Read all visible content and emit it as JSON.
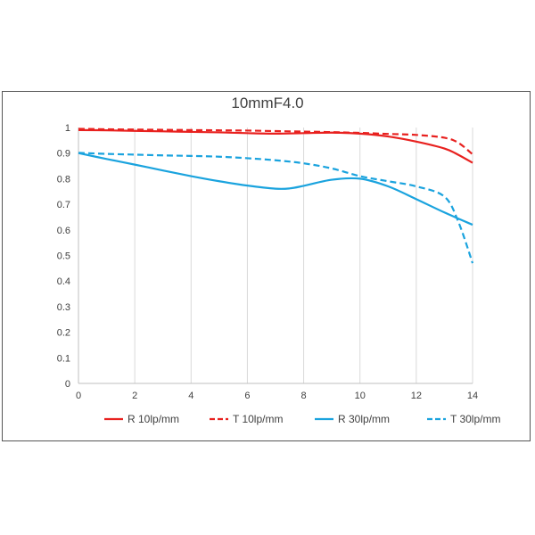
{
  "chart_data": {
    "type": "line",
    "title": "10mmF4.0",
    "xlabel": "",
    "ylabel": "",
    "xlim": [
      0,
      14
    ],
    "ylim": [
      0,
      1
    ],
    "x_ticks": [
      "0",
      "2",
      "4",
      "6",
      "8",
      "10",
      "12",
      "14"
    ],
    "y_ticks": [
      "0",
      "0.1",
      "0.2",
      "0.3",
      "0.4",
      "0.5",
      "0.6",
      "0.7",
      "0.8",
      "0.9",
      "1"
    ],
    "grid": "vertical",
    "legend_position": "bottom",
    "series": [
      {
        "name": "R 10lp/mm",
        "color": "#e8211f",
        "dash": "solid",
        "x": [
          0,
          1,
          2,
          3,
          4,
          5,
          6,
          7,
          8,
          9,
          10,
          11,
          12,
          13,
          13.5,
          14
        ],
        "y": [
          0.99,
          0.989,
          0.987,
          0.985,
          0.983,
          0.981,
          0.978,
          0.976,
          0.978,
          0.98,
          0.976,
          0.965,
          0.945,
          0.918,
          0.893,
          0.862
        ]
      },
      {
        "name": "T 10lp/mm",
        "color": "#e8211f",
        "dash": "dashed",
        "x": [
          0,
          1,
          2,
          3,
          4,
          5,
          6,
          7,
          8,
          9,
          10,
          11,
          12,
          13,
          13.5,
          14
        ],
        "y": [
          0.995,
          0.993,
          0.992,
          0.991,
          0.99,
          0.989,
          0.988,
          0.986,
          0.984,
          0.982,
          0.979,
          0.975,
          0.971,
          0.96,
          0.94,
          0.895
        ]
      },
      {
        "name": "R 30lp/mm",
        "color": "#1aa3de",
        "dash": "solid",
        "x": [
          0,
          1,
          2,
          3,
          4,
          5,
          6,
          7,
          7.5,
          8,
          9,
          10,
          11,
          12,
          13,
          14
        ],
        "y": [
          0.9,
          0.877,
          0.855,
          0.832,
          0.81,
          0.79,
          0.773,
          0.761,
          0.762,
          0.772,
          0.796,
          0.8,
          0.77,
          0.72,
          0.668,
          0.62
        ]
      },
      {
        "name": "T 30lp/mm",
        "color": "#1aa3de",
        "dash": "dashed",
        "x": [
          0,
          1,
          2,
          3,
          4,
          5,
          6,
          7,
          8,
          9,
          10,
          11,
          12,
          13,
          13.5,
          14
        ],
        "y": [
          0.901,
          0.897,
          0.894,
          0.891,
          0.889,
          0.886,
          0.88,
          0.872,
          0.86,
          0.84,
          0.81,
          0.79,
          0.77,
          0.73,
          0.63,
          0.47
        ]
      }
    ]
  }
}
